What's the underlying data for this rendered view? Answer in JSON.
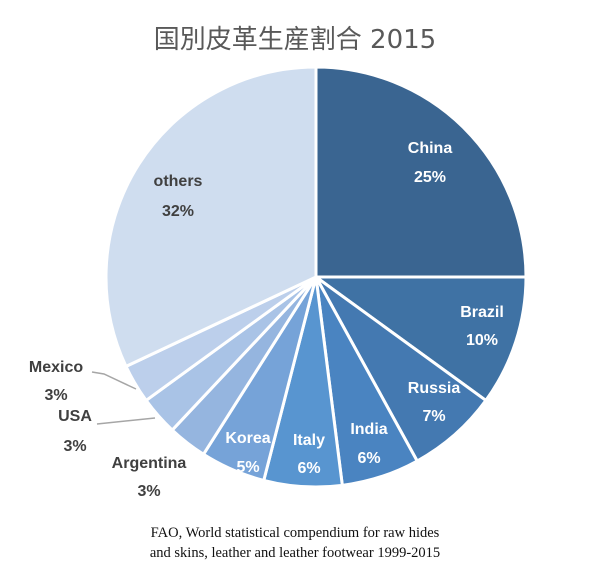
{
  "chart_data": {
    "type": "pie",
    "title": "国別皮革生産割合 2015",
    "start_angle_deg": 0,
    "direction": "clockwise",
    "slices": [
      {
        "name": "China",
        "value": 25,
        "label": "25%",
        "color": "#3a6591"
      },
      {
        "name": "Brazil",
        "value": 10,
        "label": "10%",
        "color": "#3f72a4"
      },
      {
        "name": "Russia",
        "value": 7,
        "label": "7%",
        "color": "#4479b1"
      },
      {
        "name": "India",
        "value": 6,
        "label": "6%",
        "color": "#4a84c1"
      },
      {
        "name": "Italy",
        "value": 6,
        "label": "6%",
        "color": "#5895d0"
      },
      {
        "name": "Korea",
        "value": 5,
        "label": "5%",
        "color": "#76a3d8"
      },
      {
        "name": "Argentina",
        "value": 3,
        "label": "3%",
        "color": "#95b5df"
      },
      {
        "name": "USA",
        "value": 3,
        "label": "3%",
        "color": "#a9c3e6"
      },
      {
        "name": "Mexico",
        "value": 3,
        "label": "3%",
        "color": "#bccfeb"
      },
      {
        "name": "others",
        "value": 32,
        "label": "32%",
        "color": "#cfddef"
      }
    ]
  },
  "source": {
    "line1": "FAO, World statistical compendium for raw hides",
    "line2": "and skins, leather and leather footwear 1999-2015"
  }
}
